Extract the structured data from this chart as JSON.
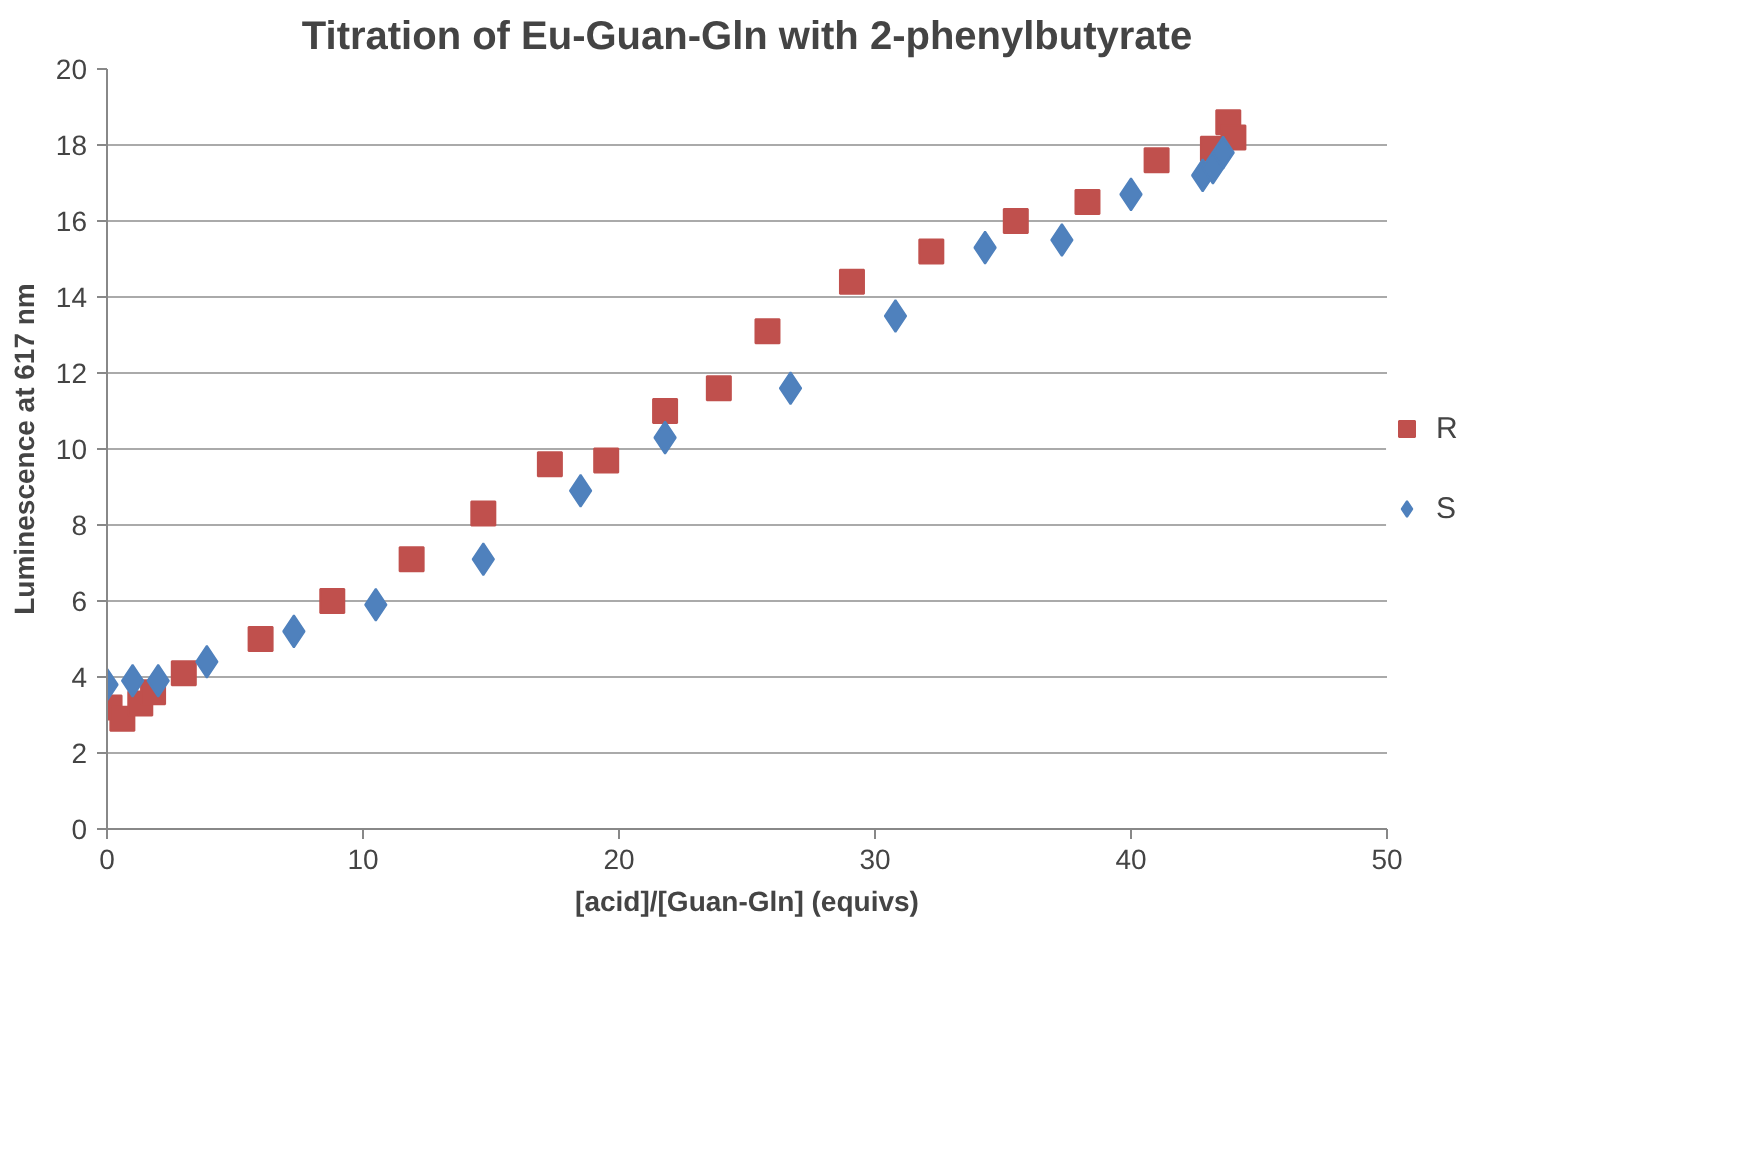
{
  "chart_data": {
    "type": "scatter",
    "title": "Titration of Eu-Guan-Gln with 2-phenylbutyrate",
    "xlabel": "[acid]/[Guan-Gln] (equivs)",
    "ylabel": "Luminescence at 617 nm",
    "xlim": [
      0,
      50
    ],
    "xticks": [
      0,
      10,
      20,
      30,
      40,
      50
    ],
    "ylim": [
      0,
      20
    ],
    "yticks": [
      0,
      2,
      4,
      6,
      8,
      10,
      12,
      14,
      16,
      18,
      20
    ],
    "grid": "y",
    "legend": "right",
    "series": [
      {
        "name": "R",
        "color": "#c0504d",
        "marker": "square",
        "x": [
          0.1,
          0.6,
          1.3,
          1.8,
          3,
          6,
          8.8,
          11.9,
          14.7,
          17.3,
          19.5,
          21.8,
          23.9,
          25.8,
          29.1,
          32.2,
          35.5,
          38.3,
          41,
          43.2,
          43.8,
          44
        ],
        "values": [
          3.2,
          2.9,
          3.3,
          3.6,
          4.1,
          5.0,
          6.0,
          7.1,
          8.3,
          9.6,
          9.7,
          11.0,
          11.6,
          13.1,
          14.4,
          15.2,
          16.0,
          16.5,
          17.6,
          17.9,
          18.6,
          18.2
        ]
      },
      {
        "name": "S",
        "color": "#4f81bd",
        "marker": "diamond",
        "x": [
          0,
          1,
          2,
          3.9,
          7.3,
          10.5,
          14.7,
          18.5,
          21.8,
          26.7,
          30.8,
          34.3,
          37.3,
          40,
          42.8,
          43.2,
          43.6
        ],
        "values": [
          3.8,
          3.9,
          3.9,
          4.4,
          5.2,
          5.9,
          7.1,
          8.9,
          10.3,
          11.6,
          13.5,
          15.3,
          15.5,
          16.7,
          17.2,
          17.4,
          17.8
        ]
      }
    ]
  }
}
